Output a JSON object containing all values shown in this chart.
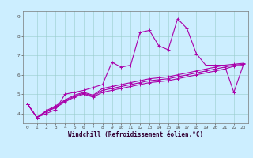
{
  "title": "",
  "xlabel": "Windchill (Refroidissement éolien,°C)",
  "bg_color": "#cceeff",
  "line_color": "#aa00aa",
  "grid_color": "#99cccc",
  "x_data": [
    0,
    1,
    2,
    3,
    4,
    5,
    6,
    7,
    8,
    9,
    10,
    11,
    12,
    13,
    14,
    15,
    16,
    17,
    18,
    19,
    20,
    21,
    22,
    23
  ],
  "series1": [
    4.5,
    3.8,
    4.0,
    4.2,
    5.0,
    5.1,
    5.2,
    5.35,
    5.5,
    6.65,
    6.4,
    6.5,
    8.2,
    8.3,
    7.5,
    7.3,
    8.9,
    8.4,
    7.1,
    6.5,
    6.5,
    6.5,
    5.1,
    6.5
  ],
  "series2": [
    4.5,
    3.8,
    4.1,
    4.3,
    4.6,
    4.85,
    5.0,
    4.85,
    5.1,
    5.2,
    5.3,
    5.4,
    5.5,
    5.6,
    5.65,
    5.7,
    5.8,
    5.9,
    6.0,
    6.1,
    6.2,
    6.3,
    6.45,
    6.5
  ],
  "series3": [
    4.5,
    3.8,
    4.1,
    4.35,
    4.65,
    4.9,
    5.05,
    4.9,
    5.2,
    5.3,
    5.4,
    5.5,
    5.6,
    5.7,
    5.75,
    5.8,
    5.9,
    6.0,
    6.1,
    6.2,
    6.3,
    6.4,
    6.5,
    6.55
  ],
  "series4": [
    4.5,
    3.8,
    4.15,
    4.4,
    4.7,
    4.95,
    5.1,
    4.95,
    5.3,
    5.4,
    5.5,
    5.6,
    5.7,
    5.8,
    5.85,
    5.9,
    6.0,
    6.1,
    6.2,
    6.3,
    6.4,
    6.5,
    6.55,
    6.6
  ],
  "ylim": [
    3.5,
    9.3
  ],
  "xlim": [
    -0.5,
    23.5
  ],
  "yticks": [
    4,
    5,
    6,
    7,
    8,
    9
  ],
  "xticks": [
    0,
    1,
    2,
    3,
    4,
    5,
    6,
    7,
    8,
    9,
    10,
    11,
    12,
    13,
    14,
    15,
    16,
    17,
    18,
    19,
    20,
    21,
    22,
    23
  ],
  "linewidth": 0.8,
  "markersize": 3.0
}
